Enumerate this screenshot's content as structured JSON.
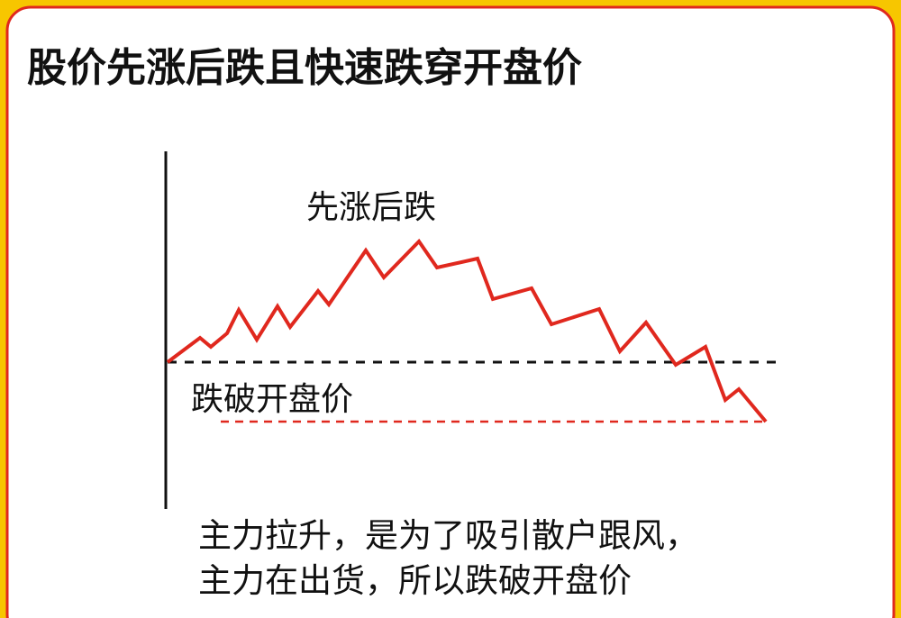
{
  "header": {
    "title": "股价先涨后跌且快速跌穿开盘价"
  },
  "labels": {
    "rise_fall": "先涨后跌",
    "break_open": "跌破开盘价"
  },
  "caption": {
    "lines": [
      "主力拉升，是为了吸引散户跟风，",
      "主力在出货，所以跌破开盘价"
    ]
  }
}
